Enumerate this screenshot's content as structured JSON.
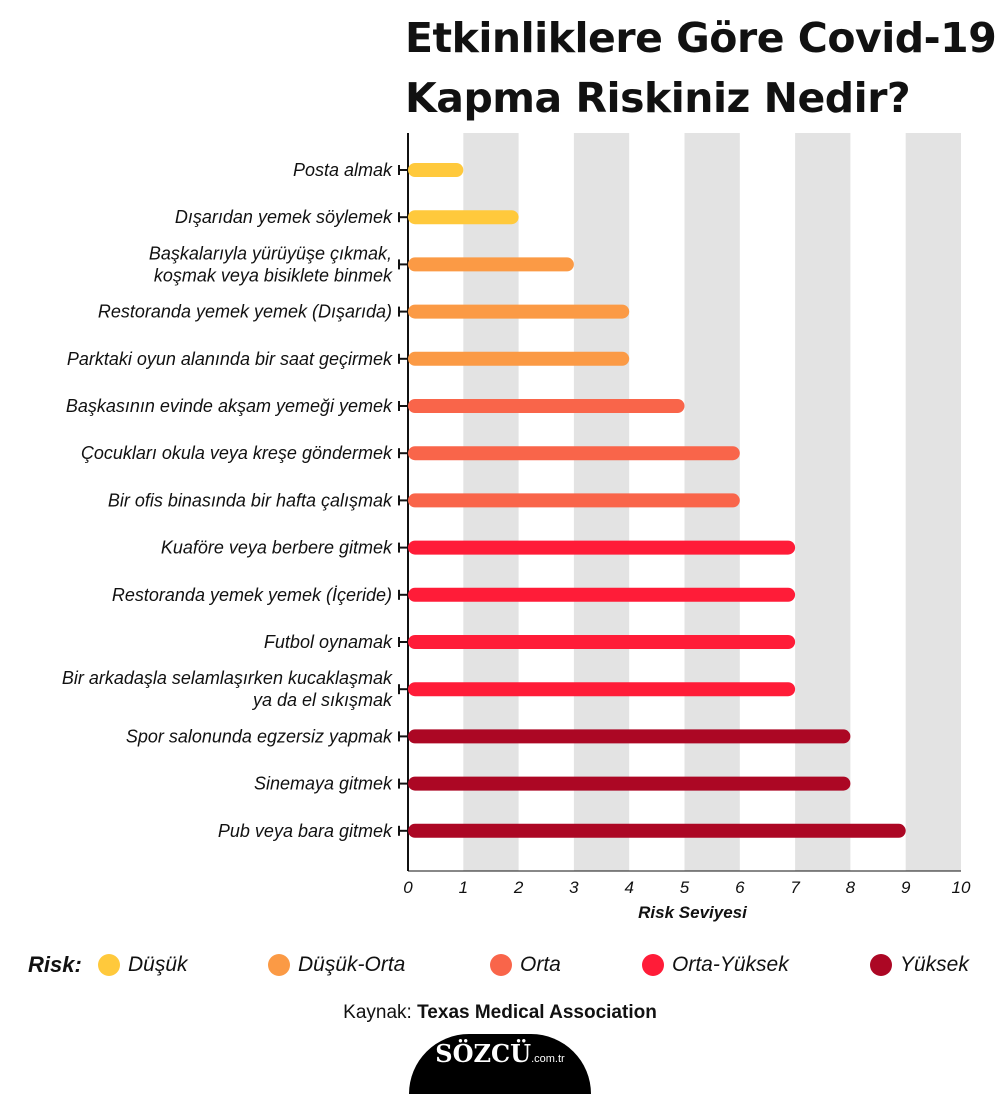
{
  "title": {
    "line1": "Etkinliklere Göre Covid-19",
    "line2": "Kapma Riskiniz Nedir?"
  },
  "colors": {
    "low": "#ffc93c",
    "low_mid": "#fb9a45",
    "mid": "#f9654a",
    "mid_high": "#ff1c38",
    "high": "#ac0724",
    "band": "#e3e3e3",
    "axis": "#111111"
  },
  "chart_data": {
    "type": "bar",
    "orientation": "horizontal",
    "xlabel": "Risk Seviyesi",
    "xlim": [
      0,
      10
    ],
    "xticks": [
      "0",
      "1",
      "2",
      "3",
      "4",
      "5",
      "6",
      "7",
      "8",
      "9",
      "10"
    ],
    "categories": [
      "Posta almak",
      "Dışarıdan yemek söylemek",
      "Başkalarıyla yürüyüşe çıkmak,\nkoşmak veya bisiklete binmek",
      "Restoranda yemek yemek (Dışarıda)",
      "Parktaki oyun alanında bir saat geçirmek",
      "Başkasının evinde akşam yemeği yemek",
      "Çocukları okula veya kreşe göndermek",
      "Bir ofis binasında bir hafta çalışmak",
      "Kuaföre veya berbere gitmek",
      "Restoranda yemek yemek (İçeride)",
      "Futbol oynamak",
      "Bir arkadaşla selamlaşırken kucaklaşmak\nya da el sıkışmak",
      "Spor salonunda egzersiz yapmak",
      "Sinemaya gitmek",
      "Pub veya bara gitmek"
    ],
    "values": [
      1,
      2,
      3,
      4,
      4,
      5,
      6,
      6,
      7,
      7,
      7,
      7,
      8,
      8,
      9
    ],
    "risk_levels": [
      "low",
      "low",
      "low_mid",
      "low_mid",
      "low_mid",
      "mid",
      "mid",
      "mid",
      "mid_high",
      "mid_high",
      "mid_high",
      "mid_high",
      "high",
      "high",
      "high"
    ]
  },
  "legend": {
    "title": "Risk:",
    "items": [
      {
        "key": "low",
        "label": "Düşük"
      },
      {
        "key": "low_mid",
        "label": "Düşük-Orta"
      },
      {
        "key": "mid",
        "label": "Orta"
      },
      {
        "key": "mid_high",
        "label": "Orta-Yüksek"
      },
      {
        "key": "high",
        "label": "Yüksek"
      }
    ]
  },
  "source": {
    "prefix": "Kaynak:",
    "name": "Texas Medical Association"
  },
  "logo": {
    "brand": "SÖZCÜ",
    "tld": ".com.tr"
  }
}
